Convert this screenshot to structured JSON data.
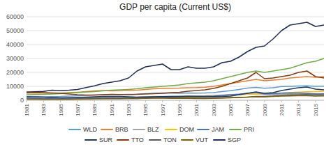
{
  "chart_data": {
    "type": "line",
    "title": "GDP per capita (Current US$)",
    "x": [
      1981,
      1982,
      1983,
      1984,
      1985,
      1986,
      1987,
      1988,
      1989,
      1990,
      1991,
      1992,
      1993,
      1994,
      1995,
      1996,
      1997,
      1998,
      1999,
      2000,
      2001,
      2002,
      2003,
      2004,
      2005,
      2006,
      2007,
      2008,
      2009,
      2010,
      2011,
      2012,
      2013,
      2014,
      2015,
      2016
    ],
    "series": [
      {
        "name": "WLD",
        "color": "#5B9BD5",
        "values": [
          2700,
          2600,
          2500,
          2600,
          2700,
          3000,
          3200,
          3500,
          3700,
          4000,
          4100,
          4100,
          4200,
          4400,
          4800,
          5000,
          5200,
          5100,
          5000,
          5200,
          5100,
          5200,
          5500,
          6200,
          6900,
          7700,
          8700,
          9200,
          8600,
          9000,
          9900,
          10000,
          10200,
          10400,
          10000,
          10100
        ]
      },
      {
        "name": "BRB",
        "color": "#ED7D31",
        "values": [
          5000,
          5200,
          5100,
          5000,
          5100,
          5500,
          5800,
          6200,
          6700,
          7000,
          6800,
          7000,
          7100,
          7300,
          7800,
          8200,
          8500,
          8600,
          8700,
          9000,
          9100,
          9400,
          10000,
          11000,
          12000,
          13000,
          14000,
          15000,
          14000,
          14500,
          15000,
          16000,
          16500,
          17000,
          16500,
          17000
        ]
      },
      {
        "name": "BLZ",
        "color": "#A5A5A5",
        "values": [
          1200,
          1100,
          1100,
          1200,
          1300,
          1400,
          1500,
          1600,
          1700,
          1900,
          2000,
          2000,
          2100,
          2200,
          2500,
          2700,
          2800,
          2800,
          2900,
          3000,
          3100,
          3200,
          3500,
          3800,
          4000,
          4200,
          4400,
          4600,
          4200,
          4300,
          4500,
          4600,
          4700,
          4800,
          4700,
          4800
        ]
      },
      {
        "name": "DOM",
        "color": "#FFC000",
        "values": [
          900,
          900,
          900,
          1000,
          1000,
          900,
          800,
          900,
          1000,
          1100,
          1200,
          1300,
          1500,
          1700,
          1900,
          2100,
          2200,
          2200,
          2300,
          2500,
          2600,
          2700,
          2900,
          3200,
          3600,
          4000,
          4400,
          4800,
          4600,
          4900,
          5300,
          5600,
          5900,
          6100,
          6300,
          6500
        ]
      },
      {
        "name": "JAM",
        "color": "#4472C4",
        "values": [
          1500,
          1400,
          1300,
          1400,
          1400,
          1300,
          1400,
          1500,
          1700,
          1800,
          1700,
          1600,
          1600,
          1700,
          1900,
          2100,
          2300,
          2400,
          2500,
          2700,
          2700,
          2800,
          3000,
          3500,
          4000,
          4400,
          5000,
          5600,
          4500,
          4700,
          5100,
          5200,
          5200,
          5000,
          4500,
          4600
        ]
      },
      {
        "name": "PRI",
        "color": "#70AD47",
        "values": [
          4000,
          4100,
          4200,
          4500,
          4800,
          5200,
          5500,
          5900,
          6300,
          6800,
          7200,
          7500,
          7800,
          8200,
          9000,
          9500,
          10000,
          10500,
          11000,
          12000,
          12500,
          13000,
          14000,
          15500,
          17000,
          18500,
          20000,
          21000,
          20000,
          21000,
          22000,
          23000,
          25000,
          27000,
          28000,
          30000
        ]
      },
      {
        "name": "SUR",
        "color": "#203864",
        "values": [
          2500,
          2400,
          2200,
          2000,
          1800,
          1900,
          2100,
          2300,
          2500,
          2700,
          2800,
          2700,
          2500,
          2300,
          2400,
          2500,
          2600,
          2700,
          2800,
          2900,
          2800,
          2700,
          2600,
          2700,
          3000,
          4000,
          5000,
          6000,
          5000,
          5500,
          7000,
          8000,
          9000,
          9500,
          8000,
          7500
        ]
      },
      {
        "name": "TTO",
        "color": "#843C0C",
        "values": [
          6000,
          5800,
          5500,
          5200,
          5000,
          4500,
          4000,
          3800,
          3800,
          4000,
          4200,
          4100,
          4000,
          4200,
          4500,
          4700,
          5000,
          5500,
          5800,
          6500,
          7000,
          7500,
          8500,
          10000,
          12000,
          14000,
          16000,
          20000,
          15500,
          16000,
          17000,
          18000,
          20000,
          21000,
          17000,
          16000
        ]
      },
      {
        "name": "TON",
        "color": "#595959",
        "values": [
          700,
          700,
          700,
          700,
          700,
          800,
          900,
          1000,
          1100,
          1200,
          1100,
          1100,
          1200,
          1300,
          1500,
          1700,
          1800,
          1800,
          1800,
          1800,
          1700,
          1700,
          1800,
          1900,
          2000,
          2100,
          2300,
          2700,
          2800,
          3100,
          3600,
          3900,
          4000,
          4100,
          3900,
          4000
        ]
      },
      {
        "name": "VUT",
        "color": "#806000",
        "values": [
          900,
          900,
          800,
          800,
          800,
          800,
          900,
          1000,
          1100,
          1200,
          1200,
          1200,
          1200,
          1300,
          1400,
          1500,
          1500,
          1400,
          1400,
          1400,
          1300,
          1300,
          1400,
          1500,
          1700,
          2000,
          2300,
          2500,
          2400,
          2700,
          3000,
          3100,
          3200,
          3200,
          3000,
          3100
        ]
      },
      {
        "name": "SGP",
        "color": "#1F2F5A",
        "values": [
          5800,
          6100,
          6400,
          7200,
          6900,
          7200,
          7800,
          9100,
          10400,
          12000,
          13000,
          14000,
          16000,
          21000,
          24000,
          25000,
          26000,
          22000,
          22000,
          24000,
          23000,
          23000,
          24000,
          27000,
          28000,
          31000,
          35000,
          38000,
          39000,
          44000,
          50000,
          54000,
          55000,
          56000,
          53000,
          54000
        ]
      }
    ],
    "xlim": [
      1981,
      2016
    ],
    "xticks": [
      1981,
      1983,
      1985,
      1987,
      1989,
      1991,
      1993,
      1995,
      1997,
      1999,
      2001,
      2003,
      2005,
      2007,
      2009,
      2011,
      2013,
      2015
    ],
    "ylim": [
      0,
      60000
    ],
    "yticks": [
      0,
      10000,
      20000,
      30000,
      40000,
      50000,
      60000
    ],
    "grid": true,
    "legend": "bottom"
  }
}
